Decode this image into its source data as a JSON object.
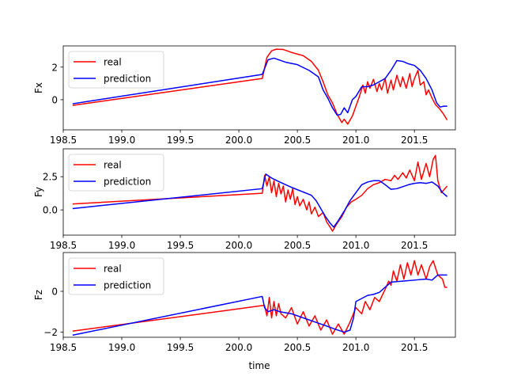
{
  "chart_data": [
    {
      "type": "line",
      "title": "",
      "xlabel": "",
      "ylabel": "Fx",
      "xlim": [
        198.5,
        201.85
      ],
      "ylim": [
        -1.85,
        3.3
      ],
      "xticks": [
        198.5,
        199.0,
        199.5,
        200.0,
        200.5,
        201.0,
        201.5
      ],
      "xtick_labels": [
        "198.5",
        "199.0",
        "199.5",
        "200.0",
        "200.5",
        "201.0",
        "201.5"
      ],
      "yticks": [
        0,
        2
      ],
      "ytick_labels": [
        "0",
        "2"
      ],
      "legend_position": "top-left",
      "series": [
        {
          "name": "real",
          "color": "#ff0000",
          "points": [
            [
              198.58,
              -0.35
            ],
            [
              200.2,
              1.3
            ],
            [
              200.24,
              2.6
            ],
            [
              200.28,
              3.0
            ],
            [
              200.32,
              3.1
            ],
            [
              200.38,
              3.08
            ],
            [
              200.45,
              2.9
            ],
            [
              200.55,
              2.7
            ],
            [
              200.62,
              2.35
            ],
            [
              200.68,
              1.8
            ],
            [
              200.72,
              1.1
            ],
            [
              200.76,
              0.3
            ],
            [
              200.8,
              -0.2
            ],
            [
              200.84,
              -0.9
            ],
            [
              200.88,
              -1.4
            ],
            [
              200.9,
              -1.2
            ],
            [
              200.93,
              -1.5
            ],
            [
              200.97,
              -1.0
            ],
            [
              201.0,
              -0.4
            ],
            [
              201.03,
              0.2
            ],
            [
              201.06,
              0.9
            ],
            [
              201.08,
              0.4
            ],
            [
              201.1,
              1.1
            ],
            [
              201.12,
              0.7
            ],
            [
              201.15,
              1.25
            ],
            [
              201.18,
              0.5
            ],
            [
              201.2,
              1.0
            ],
            [
              201.22,
              0.6
            ],
            [
              201.25,
              1.3
            ],
            [
              201.27,
              0.4
            ],
            [
              201.3,
              1.2
            ],
            [
              201.32,
              0.6
            ],
            [
              201.35,
              1.5
            ],
            [
              201.38,
              0.8
            ],
            [
              201.4,
              1.4
            ],
            [
              201.43,
              0.7
            ],
            [
              201.46,
              1.6
            ],
            [
              201.48,
              0.8
            ],
            [
              201.5,
              1.3
            ],
            [
              201.53,
              1.8
            ],
            [
              201.55,
              0.9
            ],
            [
              201.58,
              1.1
            ],
            [
              201.6,
              0.3
            ],
            [
              201.62,
              0.6
            ],
            [
              201.65,
              0.1
            ],
            [
              201.68,
              -0.3
            ],
            [
              201.72,
              -0.6
            ],
            [
              201.75,
              -0.9
            ],
            [
              201.78,
              -1.25
            ]
          ]
        },
        {
          "name": "prediction",
          "color": "#0000ff",
          "points": [
            [
              198.58,
              -0.25
            ],
            [
              200.2,
              1.55
            ],
            [
              200.25,
              2.45
            ],
            [
              200.3,
              2.55
            ],
            [
              200.4,
              2.3
            ],
            [
              200.5,
              2.15
            ],
            [
              200.6,
              1.8
            ],
            [
              200.68,
              1.4
            ],
            [
              200.72,
              0.6
            ],
            [
              200.76,
              0.1
            ],
            [
              200.8,
              -0.5
            ],
            [
              200.84,
              -0.95
            ],
            [
              200.87,
              -0.9
            ],
            [
              200.9,
              -0.5
            ],
            [
              200.93,
              -0.8
            ],
            [
              200.97,
              0.0
            ],
            [
              201.0,
              0.2
            ],
            [
              201.05,
              0.8
            ],
            [
              201.1,
              0.8
            ],
            [
              201.15,
              0.9
            ],
            [
              201.2,
              1.1
            ],
            [
              201.25,
              1.3
            ],
            [
              201.3,
              1.8
            ],
            [
              201.35,
              2.4
            ],
            [
              201.4,
              2.35
            ],
            [
              201.45,
              2.2
            ],
            [
              201.5,
              2.1
            ],
            [
              201.55,
              1.8
            ],
            [
              201.6,
              1.3
            ],
            [
              201.65,
              0.6
            ],
            [
              201.69,
              -0.2
            ],
            [
              201.72,
              -0.45
            ],
            [
              201.75,
              -0.4
            ],
            [
              201.78,
              -0.4
            ]
          ]
        }
      ]
    },
    {
      "type": "line",
      "title": "",
      "xlabel": "",
      "ylabel": "Fy",
      "xlim": [
        198.5,
        201.85
      ],
      "ylim": [
        -1.9,
        4.6
      ],
      "xticks": [
        198.5,
        199.0,
        199.5,
        200.0,
        200.5,
        201.0,
        201.5
      ],
      "xtick_labels": [
        "198.5",
        "199.0",
        "199.5",
        "200.0",
        "200.5",
        "201.0",
        "201.5"
      ],
      "yticks": [
        0,
        2.5
      ],
      "ytick_labels": [
        "0.0",
        "2.5"
      ],
      "legend_position": "top-left",
      "series": [
        {
          "name": "real",
          "color": "#ff0000",
          "points": [
            [
              198.58,
              0.45
            ],
            [
              200.2,
              1.25
            ],
            [
              200.22,
              2.6
            ],
            [
              200.24,
              1.8
            ],
            [
              200.26,
              2.5
            ],
            [
              200.28,
              1.3
            ],
            [
              200.3,
              2.2
            ],
            [
              200.32,
              1.0
            ],
            [
              200.34,
              2.0
            ],
            [
              200.36,
              1.2
            ],
            [
              200.38,
              1.8
            ],
            [
              200.4,
              0.6
            ],
            [
              200.42,
              1.5
            ],
            [
              200.44,
              0.8
            ],
            [
              200.46,
              1.6
            ],
            [
              200.48,
              0.4
            ],
            [
              200.5,
              1.0
            ],
            [
              200.52,
              0.3
            ],
            [
              200.55,
              0.8
            ],
            [
              200.58,
              0.0
            ],
            [
              200.6,
              0.6
            ],
            [
              200.62,
              -0.3
            ],
            [
              200.65,
              0.2
            ],
            [
              200.68,
              -0.5
            ],
            [
              200.72,
              -0.2
            ],
            [
              200.75,
              -0.9
            ],
            [
              200.78,
              -1.3
            ],
            [
              200.8,
              -1.6
            ],
            [
              200.84,
              -1.0
            ],
            [
              200.88,
              -0.5
            ],
            [
              200.92,
              0.2
            ],
            [
              200.96,
              0.6
            ],
            [
              201.0,
              0.8
            ],
            [
              201.05,
              1.1
            ],
            [
              201.1,
              1.6
            ],
            [
              201.15,
              1.9
            ],
            [
              201.2,
              2.05
            ],
            [
              201.25,
              2.3
            ],
            [
              201.3,
              2.2
            ],
            [
              201.33,
              2.6
            ],
            [
              201.36,
              2.3
            ],
            [
              201.4,
              2.8
            ],
            [
              201.43,
              2.4
            ],
            [
              201.46,
              3.0
            ],
            [
              201.5,
              2.2
            ],
            [
              201.53,
              3.6
            ],
            [
              201.56,
              2.3
            ],
            [
              201.6,
              3.5
            ],
            [
              201.63,
              2.5
            ],
            [
              201.66,
              3.8
            ],
            [
              201.68,
              4.1
            ],
            [
              201.7,
              2.2
            ],
            [
              201.73,
              1.3
            ],
            [
              201.76,
              1.6
            ],
            [
              201.78,
              1.8
            ]
          ]
        },
        {
          "name": "prediction",
          "color": "#0000ff",
          "points": [
            [
              198.58,
              0.1
            ],
            [
              200.2,
              1.6
            ],
            [
              200.23,
              2.7
            ],
            [
              200.28,
              2.4
            ],
            [
              200.35,
              2.1
            ],
            [
              200.45,
              1.7
            ],
            [
              200.55,
              1.35
            ],
            [
              200.62,
              1.1
            ],
            [
              200.66,
              0.7
            ],
            [
              200.7,
              0.1
            ],
            [
              200.74,
              -0.5
            ],
            [
              200.78,
              -1.0
            ],
            [
              200.81,
              -1.3
            ],
            [
              200.85,
              -0.8
            ],
            [
              200.9,
              -0.1
            ],
            [
              200.95,
              0.7
            ],
            [
              201.0,
              1.3
            ],
            [
              201.05,
              1.9
            ],
            [
              201.1,
              2.1
            ],
            [
              201.15,
              2.2
            ],
            [
              201.2,
              2.2
            ],
            [
              201.25,
              1.9
            ],
            [
              201.3,
              1.55
            ],
            [
              201.35,
              1.6
            ],
            [
              201.4,
              1.75
            ],
            [
              201.45,
              1.9
            ],
            [
              201.5,
              2.0
            ],
            [
              201.55,
              2.05
            ],
            [
              201.6,
              2.0
            ],
            [
              201.65,
              2.1
            ],
            [
              201.7,
              1.8
            ],
            [
              201.74,
              1.3
            ],
            [
              201.78,
              1.0
            ]
          ]
        }
      ]
    },
    {
      "type": "line",
      "title": "",
      "xlabel": "time",
      "ylabel": "Fz",
      "xlim": [
        198.5,
        201.85
      ],
      "ylim": [
        -2.25,
        1.9
      ],
      "xticks": [
        198.5,
        199.0,
        199.5,
        200.0,
        200.5,
        201.0,
        201.5
      ],
      "xtick_labels": [
        "198.5",
        "199.0",
        "199.5",
        "200.0",
        "200.5",
        "201.0",
        "201.5"
      ],
      "yticks": [
        -2,
        0
      ],
      "ytick_labels": [
        "−2",
        "0"
      ],
      "legend_position": "top-left",
      "series": [
        {
          "name": "real",
          "color": "#ff0000",
          "points": [
            [
              198.58,
              -1.95
            ],
            [
              200.2,
              -0.7
            ],
            [
              200.22,
              -0.7
            ],
            [
              200.24,
              -1.2
            ],
            [
              200.26,
              -0.3
            ],
            [
              200.28,
              -1.3
            ],
            [
              200.3,
              -0.5
            ],
            [
              200.32,
              -1.2
            ],
            [
              200.34,
              -0.6
            ],
            [
              200.36,
              -1.1
            ],
            [
              200.4,
              -1.3
            ],
            [
              200.45,
              -0.8
            ],
            [
              200.5,
              -1.6
            ],
            [
              200.55,
              -1.0
            ],
            [
              200.6,
              -1.7
            ],
            [
              200.65,
              -1.2
            ],
            [
              200.7,
              -1.9
            ],
            [
              200.75,
              -1.4
            ],
            [
              200.8,
              -2.1
            ],
            [
              200.85,
              -1.6
            ],
            [
              200.9,
              -2.1
            ],
            [
              200.95,
              -1.5
            ],
            [
              201.0,
              -0.8
            ],
            [
              201.05,
              -1.1
            ],
            [
              201.08,
              -0.5
            ],
            [
              201.12,
              -0.9
            ],
            [
              201.16,
              -0.3
            ],
            [
              201.2,
              -0.5
            ],
            [
              201.25,
              0.1
            ],
            [
              201.28,
              0.5
            ],
            [
              201.3,
              0.3
            ],
            [
              201.32,
              1.0
            ],
            [
              201.35,
              0.5
            ],
            [
              201.38,
              1.3
            ],
            [
              201.41,
              0.6
            ],
            [
              201.44,
              1.4
            ],
            [
              201.47,
              0.8
            ],
            [
              201.5,
              1.5
            ],
            [
              201.53,
              0.8
            ],
            [
              201.56,
              1.3
            ],
            [
              201.6,
              0.6
            ],
            [
              201.63,
              1.2
            ],
            [
              201.66,
              1.5
            ],
            [
              201.7,
              0.8
            ],
            [
              201.74,
              0.6
            ],
            [
              201.76,
              0.2
            ],
            [
              201.78,
              0.2
            ]
          ]
        },
        {
          "name": "prediction",
          "color": "#0000ff",
          "points": [
            [
              198.58,
              -2.15
            ],
            [
              200.2,
              -0.25
            ],
            [
              200.22,
              -0.8
            ],
            [
              200.25,
              -1.0
            ],
            [
              200.3,
              -0.9
            ],
            [
              200.35,
              -1.0
            ],
            [
              200.45,
              -1.1
            ],
            [
              200.55,
              -1.3
            ],
            [
              200.65,
              -1.5
            ],
            [
              200.75,
              -1.7
            ],
            [
              200.82,
              -1.85
            ],
            [
              200.9,
              -2.0
            ],
            [
              200.95,
              -1.9
            ],
            [
              200.98,
              -1.3
            ],
            [
              201.0,
              -0.5
            ],
            [
              201.05,
              -0.35
            ],
            [
              201.1,
              -0.2
            ],
            [
              201.15,
              -0.15
            ],
            [
              201.2,
              -0.05
            ],
            [
              201.25,
              0.2
            ],
            [
              201.3,
              0.45
            ],
            [
              201.4,
              0.5
            ],
            [
              201.5,
              0.55
            ],
            [
              201.6,
              0.6
            ],
            [
              201.65,
              0.55
            ],
            [
              201.7,
              0.8
            ],
            [
              201.75,
              0.8
            ],
            [
              201.78,
              0.8
            ]
          ]
        }
      ]
    }
  ]
}
